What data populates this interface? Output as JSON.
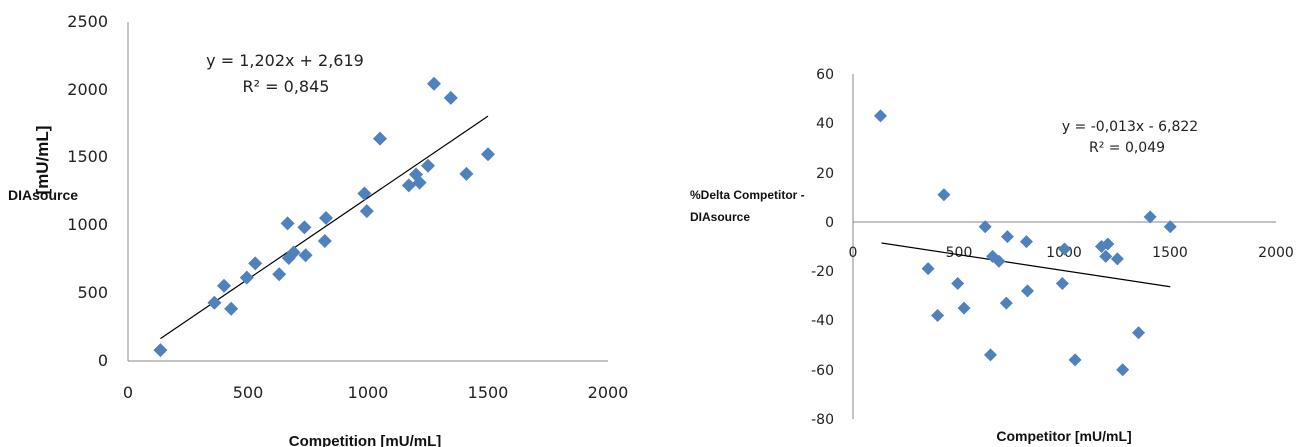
{
  "chart_data": [
    {
      "type": "scatter",
      "xlabel": "Competition  [mU/mL]",
      "ylabel_unit": "[mU/mL]",
      "ylabel_name": "DIAsource",
      "xlim": [
        0,
        2000
      ],
      "ylim": [
        0,
        2500
      ],
      "xticks": [
        "0",
        "500",
        "1000",
        "1500",
        "2000"
      ],
      "yticks": [
        "0",
        "500",
        "1000",
        "1500",
        "2000",
        "2500"
      ],
      "equation": "y = 1,202x + 2,619",
      "r2": "R² = 0,845",
      "trendline": {
        "slope": 1.202,
        "intercept": 2.619,
        "x_range": [
          135,
          1500
        ]
      },
      "marker_color": "#4f81bd",
      "points": [
        [
          135,
          80
        ],
        [
          360,
          430
        ],
        [
          400,
          555
        ],
        [
          430,
          385
        ],
        [
          495,
          615
        ],
        [
          530,
          720
        ],
        [
          630,
          640
        ],
        [
          665,
          1015
        ],
        [
          670,
          760
        ],
        [
          690,
          800
        ],
        [
          735,
          985
        ],
        [
          740,
          780
        ],
        [
          820,
          885
        ],
        [
          825,
          1055
        ],
        [
          985,
          1235
        ],
        [
          995,
          1105
        ],
        [
          1050,
          1640
        ],
        [
          1170,
          1295
        ],
        [
          1200,
          1375
        ],
        [
          1215,
          1315
        ],
        [
          1250,
          1440
        ],
        [
          1275,
          2045
        ],
        [
          1345,
          1940
        ],
        [
          1410,
          1380
        ],
        [
          1500,
          1525
        ]
      ]
    },
    {
      "type": "scatter",
      "xlabel": "Competitor  [mU/mL]",
      "ylabel_line1": "%Delta Competitor -",
      "ylabel_line2": "DIAsource",
      "xlim": [
        0,
        2000
      ],
      "ylim": [
        -80,
        60
      ],
      "xticks": [
        "0",
        "500",
        "1000",
        "1500",
        "2000"
      ],
      "yticks": [
        "-80",
        "-60",
        "-40",
        "-20",
        "0",
        "20",
        "40",
        "60"
      ],
      "equation": "y = -0,013x - 6,822",
      "r2": "R² = 0,049",
      "trendline": {
        "slope": -0.013,
        "intercept": -6.822,
        "x_range": [
          135,
          1500
        ]
      },
      "marker_color": "#4f81bd",
      "points": [
        [
          130,
          43
        ],
        [
          355,
          -19
        ],
        [
          400,
          -38
        ],
        [
          430,
          11
        ],
        [
          495,
          -25
        ],
        [
          525,
          -35
        ],
        [
          625,
          -2
        ],
        [
          650,
          -54
        ],
        [
          660,
          -14
        ],
        [
          690,
          -16
        ],
        [
          725,
          -33
        ],
        [
          730,
          -6
        ],
        [
          820,
          -8
        ],
        [
          825,
          -28
        ],
        [
          990,
          -25
        ],
        [
          1000,
          -11
        ],
        [
          1050,
          -56
        ],
        [
          1175,
          -10
        ],
        [
          1195,
          -14
        ],
        [
          1205,
          -9
        ],
        [
          1250,
          -15
        ],
        [
          1275,
          -60
        ],
        [
          1350,
          -45
        ],
        [
          1405,
          2
        ],
        [
          1500,
          -2
        ]
      ]
    }
  ]
}
